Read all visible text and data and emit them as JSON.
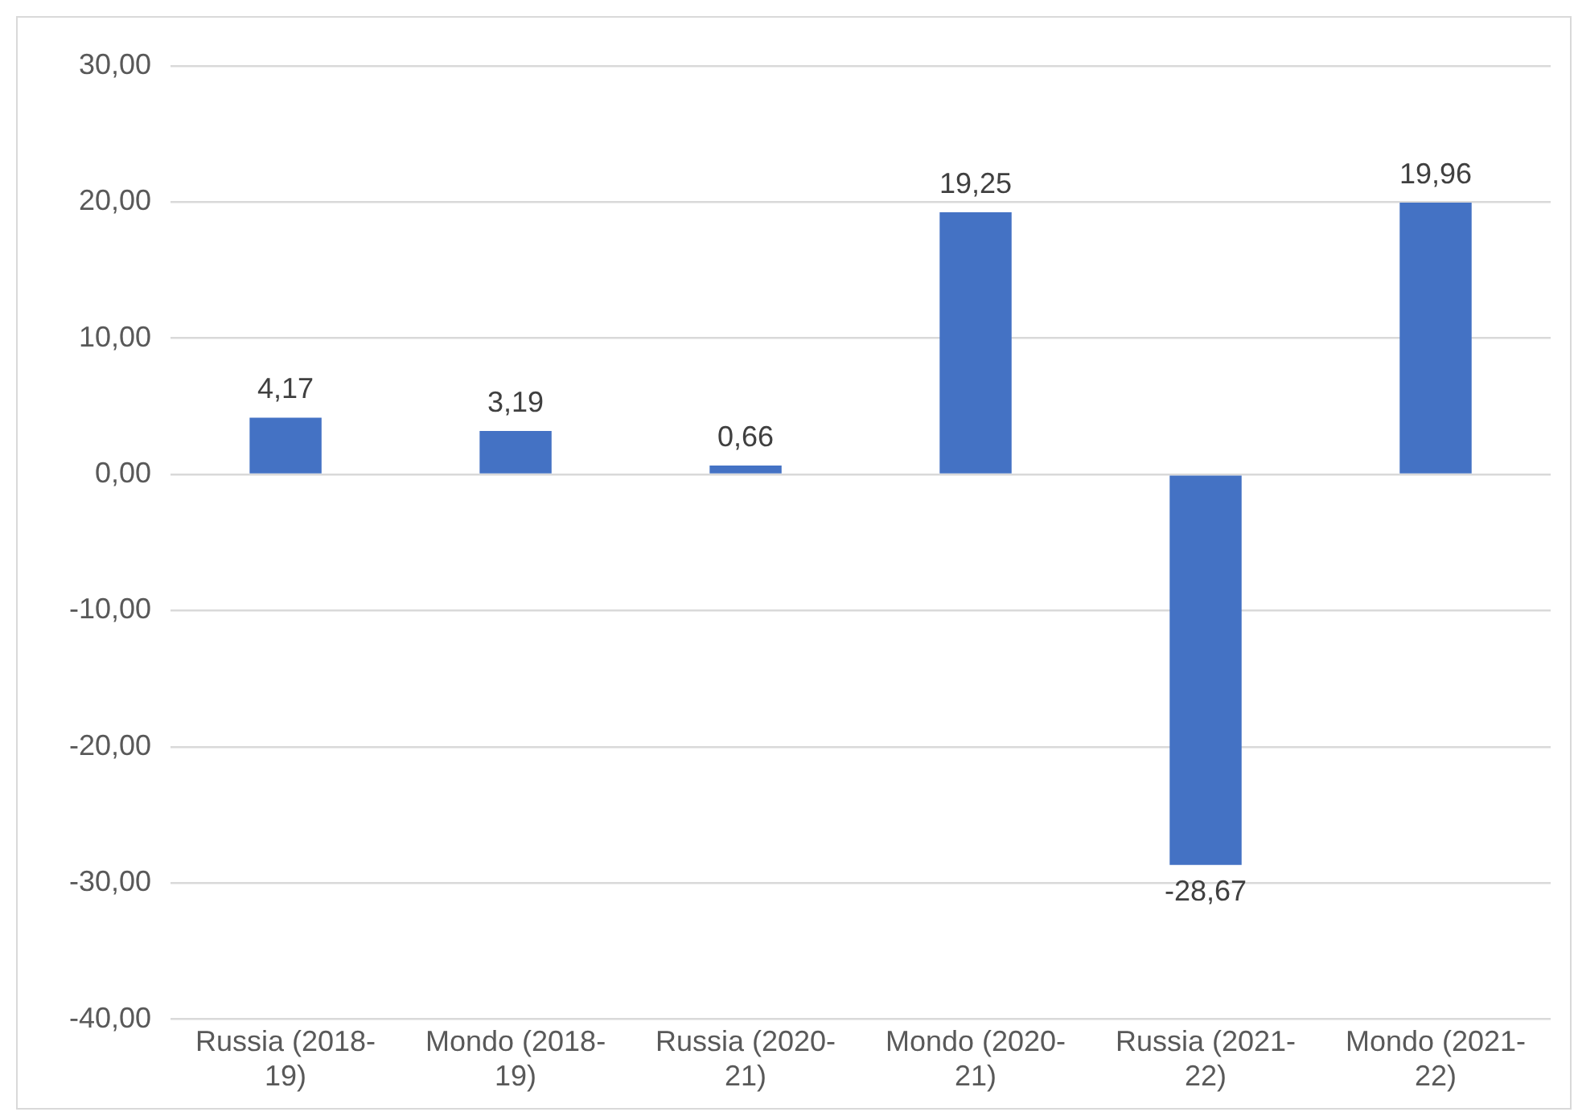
{
  "chart_data": {
    "type": "bar",
    "categories": [
      "Russia (2018-19)",
      "Mondo (2018-19)",
      "Russia (2020-21)",
      "Mondo (2020-21)",
      "Russia (2021-22)",
      "Mondo (2021-22)"
    ],
    "values": [
      4.17,
      3.19,
      0.66,
      19.25,
      -28.67,
      19.96
    ],
    "value_labels": [
      "4,17",
      "3,19",
      "0,66",
      "19,25",
      "-28,67",
      "19,96"
    ],
    "color": "#4472c4",
    "ylim": [
      -40,
      30
    ],
    "yticks": [
      {
        "value": -40,
        "label": "-40,00"
      },
      {
        "value": -30,
        "label": "-30,00"
      },
      {
        "value": -20,
        "label": "-20,00"
      },
      {
        "value": -10,
        "label": "-10,00"
      },
      {
        "value": 0,
        "label": "0,00"
      },
      {
        "value": 10,
        "label": "10,00"
      },
      {
        "value": 20,
        "label": "20,00"
      },
      {
        "value": 30,
        "label": "30,00"
      }
    ],
    "grid": "y",
    "legend": false
  }
}
